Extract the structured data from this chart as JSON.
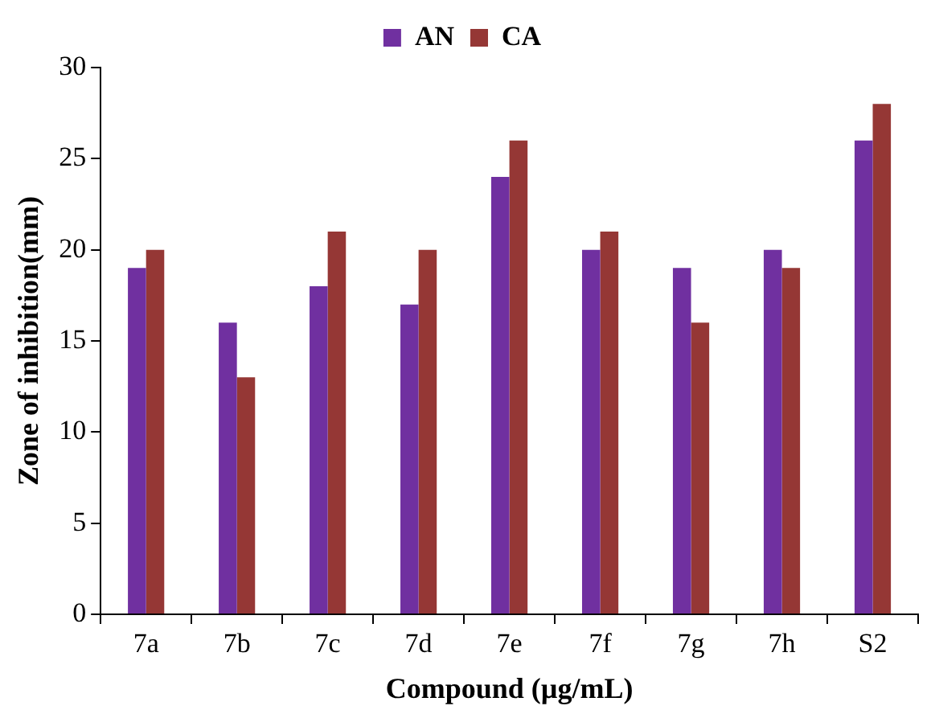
{
  "chart_data": {
    "type": "bar",
    "xlabel": "Compound (µg/mL)",
    "ylabel": "Zone of inhibition(mm)",
    "categories": [
      "7a",
      "7b",
      "7c",
      "7d",
      "7e",
      "7f",
      "7g",
      "7h",
      "S2"
    ],
    "series": [
      {
        "name": "AN",
        "color": "#7030a0",
        "values": [
          19,
          16,
          18,
          17,
          24,
          20,
          19,
          20,
          26
        ]
      },
      {
        "name": "CA",
        "color": "#953735",
        "values": [
          20,
          13,
          21,
          20,
          26,
          21,
          16,
          19,
          28
        ]
      }
    ],
    "ylim": [
      0,
      30
    ],
    "yticks": [
      0,
      5,
      10,
      15,
      20,
      25,
      30
    ],
    "grid": false,
    "legend": "top"
  }
}
